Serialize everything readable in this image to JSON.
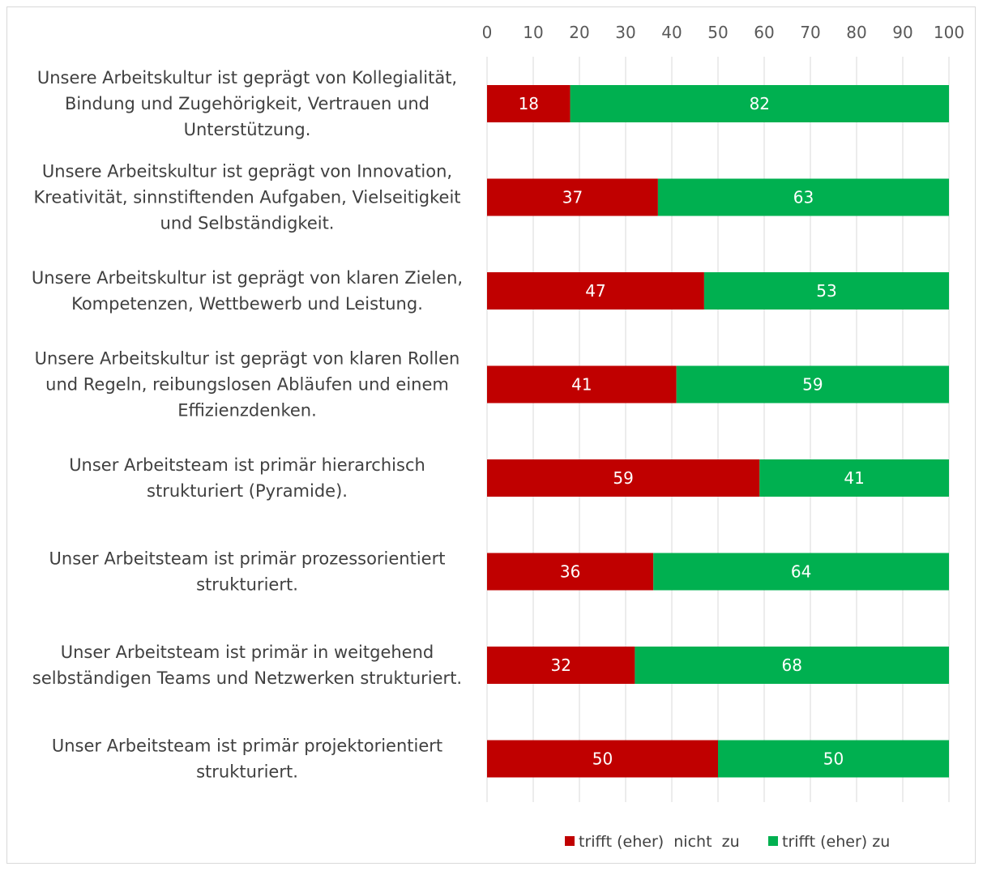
{
  "chart_data": {
    "type": "bar",
    "orientation": "horizontal",
    "stacked": true,
    "categories": [
      [
        "Unsere Arbeitskultur ist geprägt von Kollegialität,",
        "Bindung und Zugehörigkeit, Vertrauen und",
        "Unterstützung."
      ],
      [
        "Unsere Arbeitskultur ist geprägt von Innovation,",
        "Kreativität, sinnstiftenden Aufgaben, Vielseitigkeit",
        "und Selbständigkeit."
      ],
      [
        "Unsere Arbeitskultur ist geprägt von klaren Zielen,",
        "Kompetenzen, Wettbewerb und Leistung."
      ],
      [
        "Unsere Arbeitskultur ist geprägt von klaren Rollen",
        "und Regeln, reibungslosen Abläufen und einem",
        "Effizienzdenken."
      ],
      [
        "Unser Arbeitsteam ist primär hierarchisch",
        "strukturiert (Pyramide)."
      ],
      [
        "Unser Arbeitsteam ist primär prozessorientiert",
        "strukturiert."
      ],
      [
        "Unser Arbeitsteam ist primär in weitgehend",
        "selbständigen Teams und Netzwerken strukturiert."
      ],
      [
        "Unser Arbeitsteam ist primär projektorientiert",
        "strukturiert."
      ]
    ],
    "series": [
      {
        "name": "trifft (eher)  nicht  zu",
        "color": "#c00000",
        "values": [
          18,
          37,
          47,
          41,
          59,
          36,
          32,
          50
        ]
      },
      {
        "name": "trifft (eher) zu",
        "color": "#00b050",
        "values": [
          82,
          63,
          53,
          59,
          41,
          64,
          68,
          50
        ]
      }
    ],
    "xlim": [
      0,
      100
    ],
    "ticks": [
      "0",
      "10",
      "20",
      "30",
      "40",
      "50",
      "60",
      "70",
      "80",
      "90",
      "100"
    ],
    "axis_position": "top",
    "grid": true,
    "legend_position": "bottom",
    "title": "",
    "xlabel": "",
    "ylabel": ""
  }
}
